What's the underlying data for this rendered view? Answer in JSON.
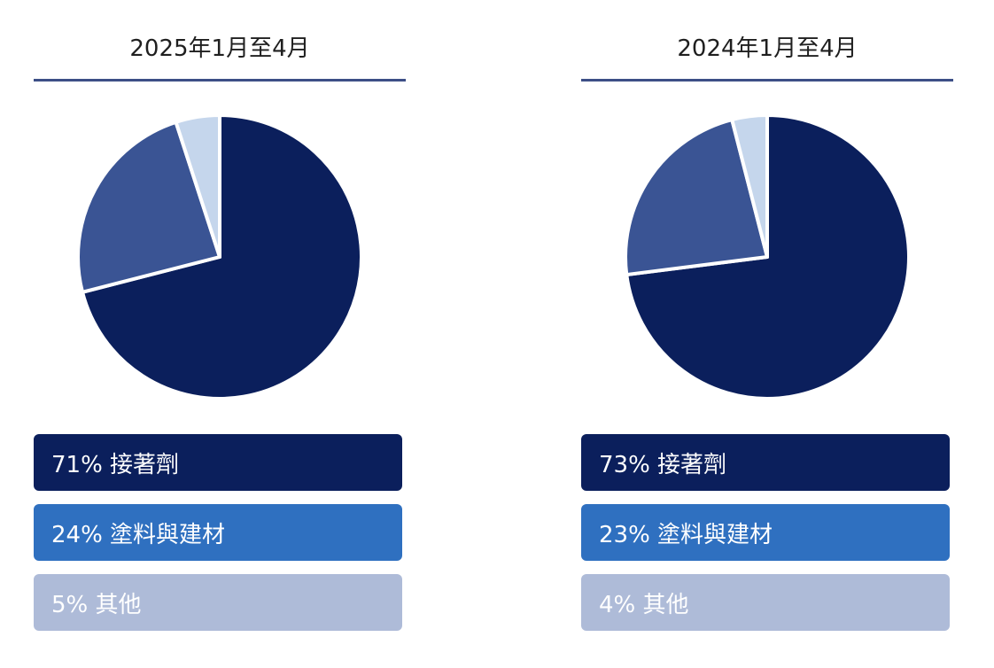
{
  "chart_data": [
    {
      "type": "pie",
      "title": "2025年1月至4月",
      "slices": [
        {
          "label": "接著劑",
          "value": 71,
          "display": "71% 接著劑"
        },
        {
          "label": "塗料與建材",
          "value": 24,
          "display": "24% 塗料與建材"
        },
        {
          "label": "其他",
          "value": 5,
          "display": "5% 其他"
        }
      ]
    },
    {
      "type": "pie",
      "title": "2024年1月至4月",
      "slices": [
        {
          "label": "接著劑",
          "value": 73,
          "display": "73% 接著劑"
        },
        {
          "label": "塗料與建材",
          "value": 23,
          "display": "23% 塗料與建材"
        },
        {
          "label": "其他",
          "value": 4,
          "display": "4% 其他"
        }
      ]
    }
  ],
  "colors": {
    "pie_slices": [
      "#0b1f5c",
      "#3a5494",
      "#c5d6ec"
    ],
    "legend_backgrounds": [
      "#0b1f5c",
      "#2f70c0",
      "#aebbd8"
    ],
    "title_rule": "#3d4f86"
  }
}
